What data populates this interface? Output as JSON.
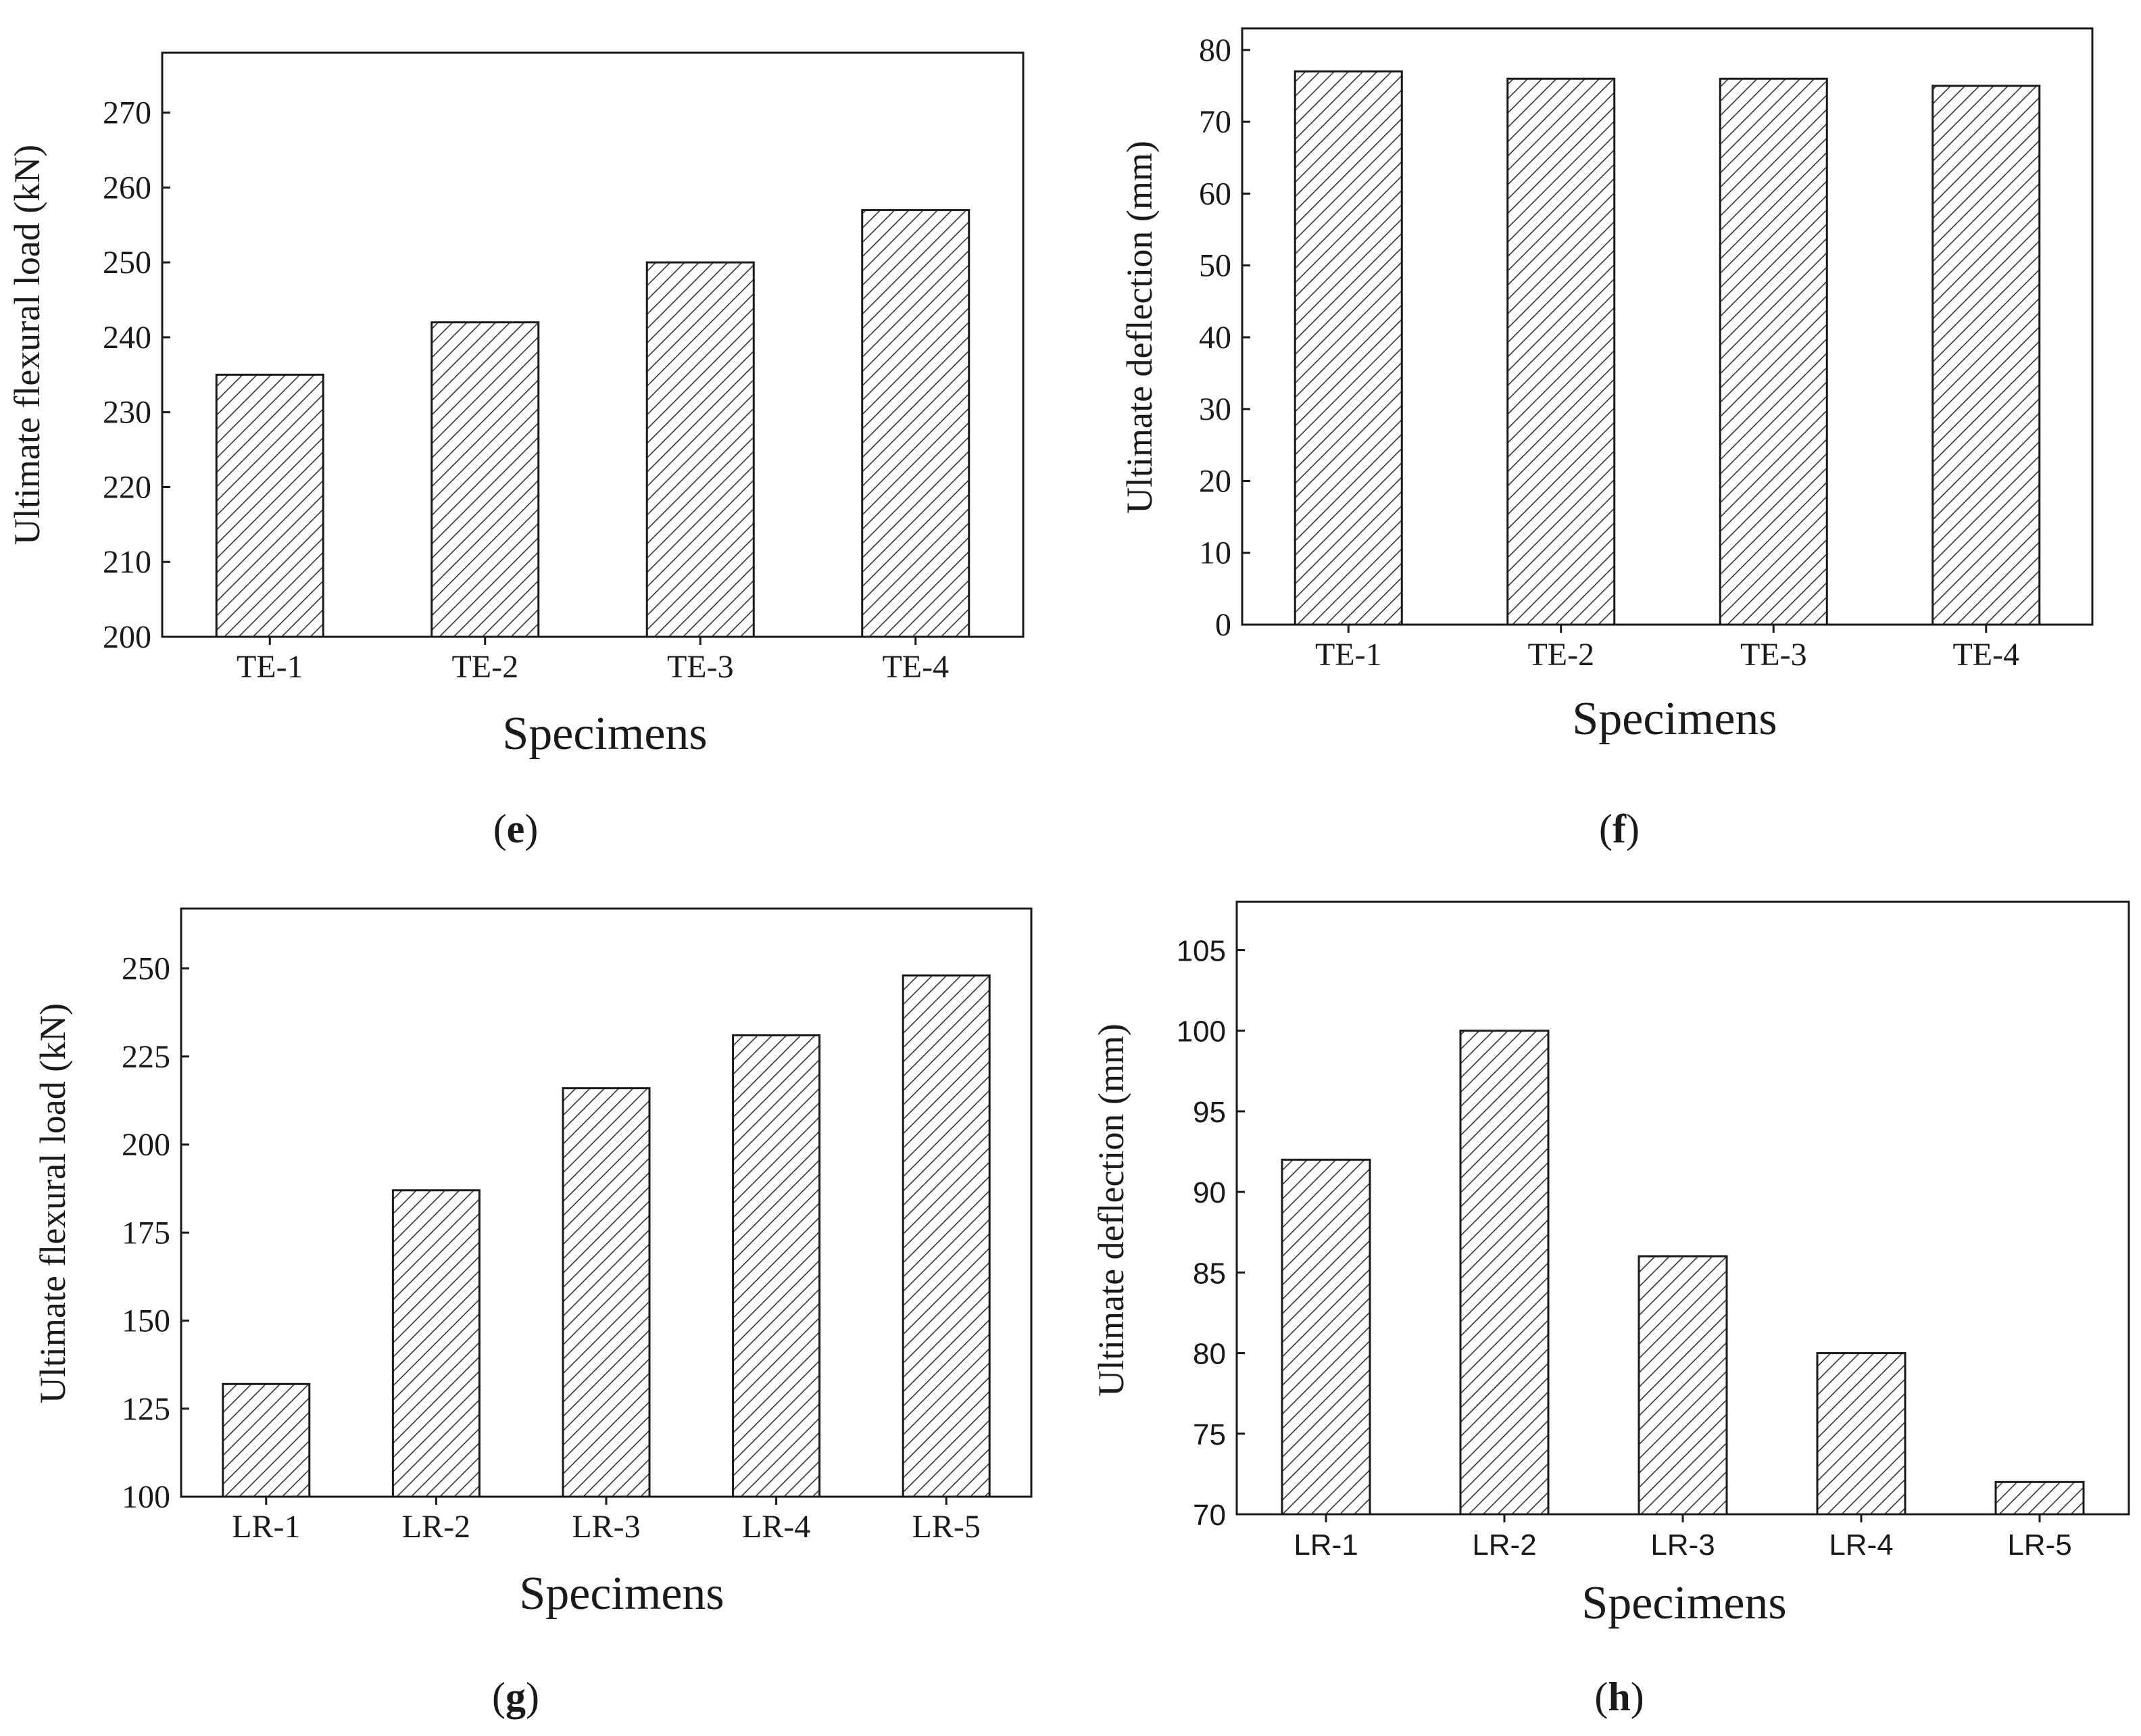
{
  "chart_data": [
    {
      "id": "e",
      "type": "bar",
      "panel_label": "e",
      "categories": [
        "TE-1",
        "TE-2",
        "TE-3",
        "TE-4"
      ],
      "values": [
        235,
        242,
        250,
        257
      ],
      "xlabel": "Specimens",
      "ylabel": "Ultimate flexural load (kN)",
      "ylim": [
        200,
        278
      ],
      "yticks": [
        200,
        210,
        220,
        230,
        240,
        250,
        260,
        270
      ],
      "bar_pattern": "diagonal-hatch",
      "grid": false
    },
    {
      "id": "f",
      "type": "bar",
      "panel_label": "f",
      "categories": [
        "TE-1",
        "TE-2",
        "TE-3",
        "TE-4"
      ],
      "values": [
        77,
        76,
        76,
        75
      ],
      "xlabel": "Specimens",
      "ylabel": "Ultimate deflection (mm)",
      "ylim": [
        0,
        83
      ],
      "yticks": [
        0,
        10,
        20,
        30,
        40,
        50,
        60,
        70,
        80
      ],
      "bar_pattern": "diagonal-hatch",
      "grid": false
    },
    {
      "id": "g",
      "type": "bar",
      "panel_label": "g",
      "categories": [
        "LR-1",
        "LR-2",
        "LR-3",
        "LR-4",
        "LR-5"
      ],
      "values": [
        132,
        187,
        216,
        231,
        248
      ],
      "xlabel": "Specimens",
      "ylabel": "Ultimate flexural load (kN)",
      "ylim": [
        100,
        267
      ],
      "yticks": [
        100,
        125,
        150,
        175,
        200,
        225,
        250
      ],
      "bar_pattern": "diagonal-hatch",
      "grid": false
    },
    {
      "id": "h",
      "type": "bar",
      "panel_label": "h",
      "categories": [
        "LR-1",
        "LR-2",
        "LR-3",
        "LR-4",
        "LR-5"
      ],
      "values": [
        92,
        100,
        86,
        80,
        72
      ],
      "xlabel": "Specimens",
      "ylabel": "Ultimate deflection (mm)",
      "ylim": [
        70,
        108
      ],
      "yticks": [
        70,
        75,
        80,
        85,
        90,
        95,
        100,
        105
      ],
      "bar_pattern": "diagonal-hatch",
      "grid": false
    }
  ]
}
